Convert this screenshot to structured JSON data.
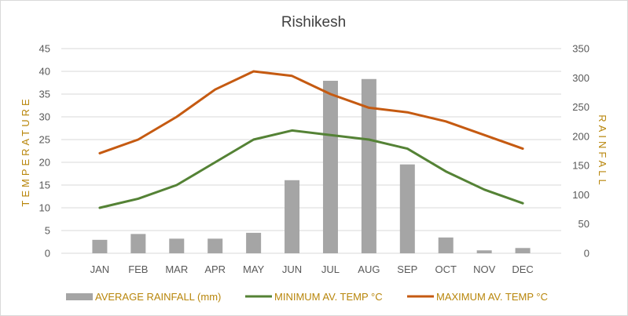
{
  "chart_data": {
    "type": "bar-line-combo",
    "title": "Rishikesh",
    "categories": [
      "JAN",
      "FEB",
      "MAR",
      "APR",
      "MAY",
      "JUN",
      "JUL",
      "AUG",
      "SEP",
      "OCT",
      "NOV",
      "DEC"
    ],
    "y_left": {
      "label": "TEMPERATURE",
      "ticks": [
        "0",
        "5",
        "10",
        "15",
        "20",
        "25",
        "30",
        "35",
        "40",
        "45"
      ],
      "range": [
        0,
        45
      ]
    },
    "y_right": {
      "label": "RAINFALL",
      "ticks": [
        "0",
        "50",
        "100",
        "150",
        "200",
        "250",
        "300",
        "350"
      ],
      "range": [
        0,
        350
      ]
    },
    "series": [
      {
        "name": "AVERAGE RAINFALL (mm)",
        "type": "bar",
        "axis": "right",
        "color": "#a5a5a5",
        "values": [
          23,
          33,
          25,
          25,
          35,
          125,
          295,
          298,
          152,
          27,
          5,
          9
        ]
      },
      {
        "name": "MINIMUM AV. TEMP °C",
        "type": "line",
        "axis": "left",
        "color": "#548235",
        "values": [
          10,
          12,
          15,
          20,
          25,
          27,
          26,
          25,
          23,
          18,
          14,
          11
        ]
      },
      {
        "name": "MAXIMUM AV. TEMP °C",
        "type": "line",
        "axis": "left",
        "color": "#c55a11",
        "values": [
          22,
          25,
          30,
          36,
          40,
          39,
          35,
          32,
          31,
          29,
          26,
          23
        ]
      }
    ],
    "grid": true,
    "legend": "bottom"
  }
}
